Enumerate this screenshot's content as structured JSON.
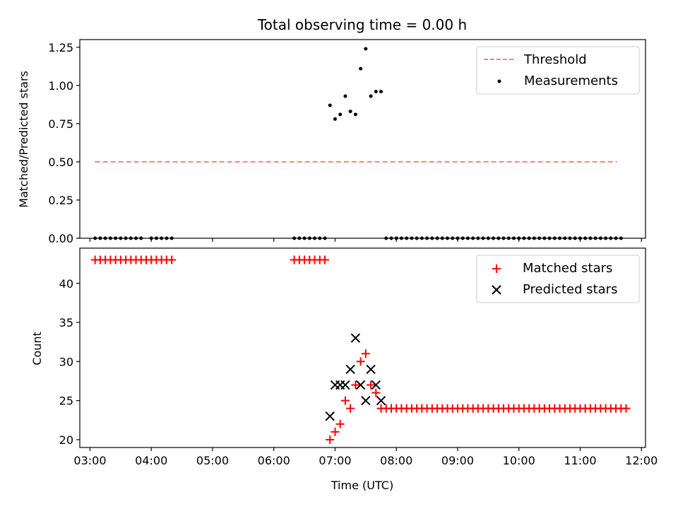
{
  "chart_data": [
    {
      "type": "scatter",
      "title": "Total observing time = 0.00 h",
      "xlabel": "",
      "ylabel": "Matched/Predicted stars",
      "ylim": [
        0,
        1.3
      ],
      "xlim": [
        "02:50",
        "12:04"
      ],
      "yticks": [
        "0.00",
        "0.25",
        "0.50",
        "0.75",
        "1.00",
        "1.25"
      ],
      "ytick_values": [
        0,
        0.25,
        0.5,
        0.75,
        1.0,
        1.25
      ],
      "legend_position": "top-right",
      "threshold": {
        "name": "Threshold",
        "y": 0.5,
        "x_range": [
          "03:05",
          "11:36"
        ],
        "color": "#ff7f7f",
        "style": "dashed"
      },
      "series": [
        {
          "name": "Measurements",
          "marker": "dot",
          "color": "#000000",
          "points": [
            [
              "03:05",
              0
            ],
            [
              "03:10",
              0
            ],
            [
              "03:15",
              0
            ],
            [
              "03:20",
              0
            ],
            [
              "03:25",
              0
            ],
            [
              "03:30",
              0
            ],
            [
              "03:35",
              0
            ],
            [
              "03:40",
              0
            ],
            [
              "03:45",
              0
            ],
            [
              "03:50",
              0
            ],
            [
              "04:00",
              0
            ],
            [
              "04:05",
              0
            ],
            [
              "04:10",
              0
            ],
            [
              "04:15",
              0
            ],
            [
              "04:20",
              0
            ],
            [
              "06:20",
              0
            ],
            [
              "06:25",
              0
            ],
            [
              "06:30",
              0
            ],
            [
              "06:35",
              0
            ],
            [
              "06:40",
              0
            ],
            [
              "06:45",
              0
            ],
            [
              "06:50",
              0
            ],
            [
              "06:55",
              0.87
            ],
            [
              "07:00",
              0.78
            ],
            [
              "07:05",
              0.81
            ],
            [
              "07:10",
              0.93
            ],
            [
              "07:15",
              0.83
            ],
            [
              "07:20",
              0.81
            ],
            [
              "07:25",
              1.11
            ],
            [
              "07:30",
              1.24
            ],
            [
              "07:35",
              0.93
            ],
            [
              "07:40",
              0.96
            ],
            [
              "07:45",
              0.96
            ],
            [
              "07:50",
              0
            ],
            [
              "07:55",
              0
            ],
            [
              "08:00",
              0
            ],
            [
              "08:05",
              0
            ],
            [
              "08:10",
              0
            ],
            [
              "08:15",
              0
            ],
            [
              "08:20",
              0
            ],
            [
              "08:25",
              0
            ],
            [
              "08:30",
              0
            ],
            [
              "08:35",
              0
            ],
            [
              "08:40",
              0
            ],
            [
              "08:45",
              0
            ],
            [
              "08:50",
              0
            ],
            [
              "08:55",
              0
            ],
            [
              "09:00",
              0
            ],
            [
              "09:05",
              0
            ],
            [
              "09:10",
              0
            ],
            [
              "09:15",
              0
            ],
            [
              "09:20",
              0
            ],
            [
              "09:25",
              0
            ],
            [
              "09:30",
              0
            ],
            [
              "09:35",
              0
            ],
            [
              "09:40",
              0
            ],
            [
              "09:45",
              0
            ],
            [
              "09:50",
              0
            ],
            [
              "09:55",
              0
            ],
            [
              "10:00",
              0
            ],
            [
              "10:05",
              0
            ],
            [
              "10:10",
              0
            ],
            [
              "10:15",
              0
            ],
            [
              "10:20",
              0
            ],
            [
              "10:25",
              0
            ],
            [
              "10:30",
              0
            ],
            [
              "10:35",
              0
            ],
            [
              "10:40",
              0
            ],
            [
              "10:45",
              0
            ],
            [
              "10:50",
              0
            ],
            [
              "10:55",
              0
            ],
            [
              "11:00",
              0
            ],
            [
              "11:05",
              0
            ],
            [
              "11:10",
              0
            ],
            [
              "11:15",
              0
            ],
            [
              "11:20",
              0
            ],
            [
              "11:25",
              0
            ],
            [
              "11:30",
              0
            ],
            [
              "11:35",
              0
            ],
            [
              "11:40",
              0
            ]
          ]
        }
      ]
    },
    {
      "type": "scatter",
      "title": "",
      "xlabel": "Time (UTC)",
      "ylabel": "Count",
      "ylim": [
        19,
        44.5
      ],
      "xlim": [
        "02:50",
        "12:04"
      ],
      "yticks": [
        "20",
        "25",
        "30",
        "35",
        "40"
      ],
      "ytick_values": [
        20,
        25,
        30,
        35,
        40
      ],
      "xticks": [
        "03:00",
        "04:00",
        "05:00",
        "06:00",
        "07:00",
        "08:00",
        "09:00",
        "10:00",
        "11:00",
        "12:00"
      ],
      "legend_position": "top-right",
      "series": [
        {
          "name": "Matched stars",
          "marker": "plus",
          "color": "#ff0000",
          "points": [
            [
              "03:05",
              43
            ],
            [
              "03:10",
              43
            ],
            [
              "03:15",
              43
            ],
            [
              "03:20",
              43
            ],
            [
              "03:25",
              43
            ],
            [
              "03:30",
              43
            ],
            [
              "03:35",
              43
            ],
            [
              "03:40",
              43
            ],
            [
              "03:45",
              43
            ],
            [
              "03:50",
              43
            ],
            [
              "03:55",
              43
            ],
            [
              "04:00",
              43
            ],
            [
              "04:05",
              43
            ],
            [
              "04:10",
              43
            ],
            [
              "04:15",
              43
            ],
            [
              "04:20",
              43
            ],
            [
              "06:20",
              43
            ],
            [
              "06:25",
              43
            ],
            [
              "06:30",
              43
            ],
            [
              "06:35",
              43
            ],
            [
              "06:40",
              43
            ],
            [
              "06:45",
              43
            ],
            [
              "06:50",
              43
            ],
            [
              "06:55",
              20
            ],
            [
              "07:00",
              21
            ],
            [
              "07:05",
              22
            ],
            [
              "07:10",
              25
            ],
            [
              "07:15",
              24
            ],
            [
              "07:20",
              27
            ],
            [
              "07:25",
              30
            ],
            [
              "07:30",
              31
            ],
            [
              "07:35",
              27
            ],
            [
              "07:40",
              26
            ],
            [
              "07:45",
              24
            ],
            [
              "07:50",
              24
            ],
            [
              "07:55",
              24
            ],
            [
              "08:00",
              24
            ],
            [
              "08:05",
              24
            ],
            [
              "08:10",
              24
            ],
            [
              "08:15",
              24
            ],
            [
              "08:20",
              24
            ],
            [
              "08:25",
              24
            ],
            [
              "08:30",
              24
            ],
            [
              "08:35",
              24
            ],
            [
              "08:40",
              24
            ],
            [
              "08:45",
              24
            ],
            [
              "08:50",
              24
            ],
            [
              "08:55",
              24
            ],
            [
              "09:00",
              24
            ],
            [
              "09:05",
              24
            ],
            [
              "09:10",
              24
            ],
            [
              "09:15",
              24
            ],
            [
              "09:20",
              24
            ],
            [
              "09:25",
              24
            ],
            [
              "09:30",
              24
            ],
            [
              "09:35",
              24
            ],
            [
              "09:40",
              24
            ],
            [
              "09:45",
              24
            ],
            [
              "09:50",
              24
            ],
            [
              "09:55",
              24
            ],
            [
              "10:00",
              24
            ],
            [
              "10:05",
              24
            ],
            [
              "10:10",
              24
            ],
            [
              "10:15",
              24
            ],
            [
              "10:20",
              24
            ],
            [
              "10:25",
              24
            ],
            [
              "10:30",
              24
            ],
            [
              "10:35",
              24
            ],
            [
              "10:40",
              24
            ],
            [
              "10:45",
              24
            ],
            [
              "10:50",
              24
            ],
            [
              "10:55",
              24
            ],
            [
              "11:00",
              24
            ],
            [
              "11:05",
              24
            ],
            [
              "11:10",
              24
            ],
            [
              "11:15",
              24
            ],
            [
              "11:20",
              24
            ],
            [
              "11:25",
              24
            ],
            [
              "11:30",
              24
            ],
            [
              "11:35",
              24
            ],
            [
              "11:40",
              24
            ],
            [
              "11:45",
              24
            ]
          ]
        },
        {
          "name": "Predicted stars",
          "marker": "x",
          "color": "#000000",
          "points": [
            [
              "06:55",
              23
            ],
            [
              "07:00",
              27
            ],
            [
              "07:05",
              27
            ],
            [
              "07:10",
              27
            ],
            [
              "07:15",
              29
            ],
            [
              "07:20",
              33
            ],
            [
              "07:25",
              27
            ],
            [
              "07:30",
              25
            ],
            [
              "07:35",
              29
            ],
            [
              "07:40",
              27
            ],
            [
              "07:45",
              25
            ]
          ]
        }
      ]
    }
  ]
}
